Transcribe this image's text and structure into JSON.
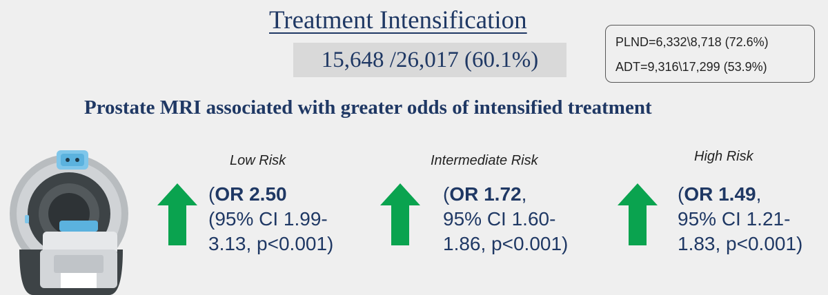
{
  "title": "Treatment Intensification",
  "summary": "15,648 /26,017 (60.1%)",
  "breakdown": {
    "plnd": "PLND=6,332\\8,718 (72.6%)",
    "adt": "ADT=9,316\\17,299 (53.9%)"
  },
  "headline": "Prostate MRI associated with greater odds of intensified treatment",
  "icons": {
    "scanner": "mri-scanner-icon",
    "arrow": "up-arrow-icon"
  },
  "colors": {
    "navy": "#1f3864",
    "arrow_green": "#0aa34f"
  },
  "risks": [
    {
      "label": "Low Risk",
      "open": "(",
      "or": "OR 2.50",
      "line1_rest": "",
      "line2": "(95% CI 1.99-",
      "line3": "3.13, p<0.001)"
    },
    {
      "label": "Intermediate Risk",
      "open": "(",
      "or": "OR 1.72",
      "line1_rest": ",",
      "line2": "95% CI 1.60-",
      "line3": "1.86, p<0.001)"
    },
    {
      "label": "High Risk",
      "open": "(",
      "or": "OR 1.49",
      "line1_rest": ",",
      "line2": "95% CI 1.21-",
      "line3": "1.83, p<0.001)"
    }
  ]
}
